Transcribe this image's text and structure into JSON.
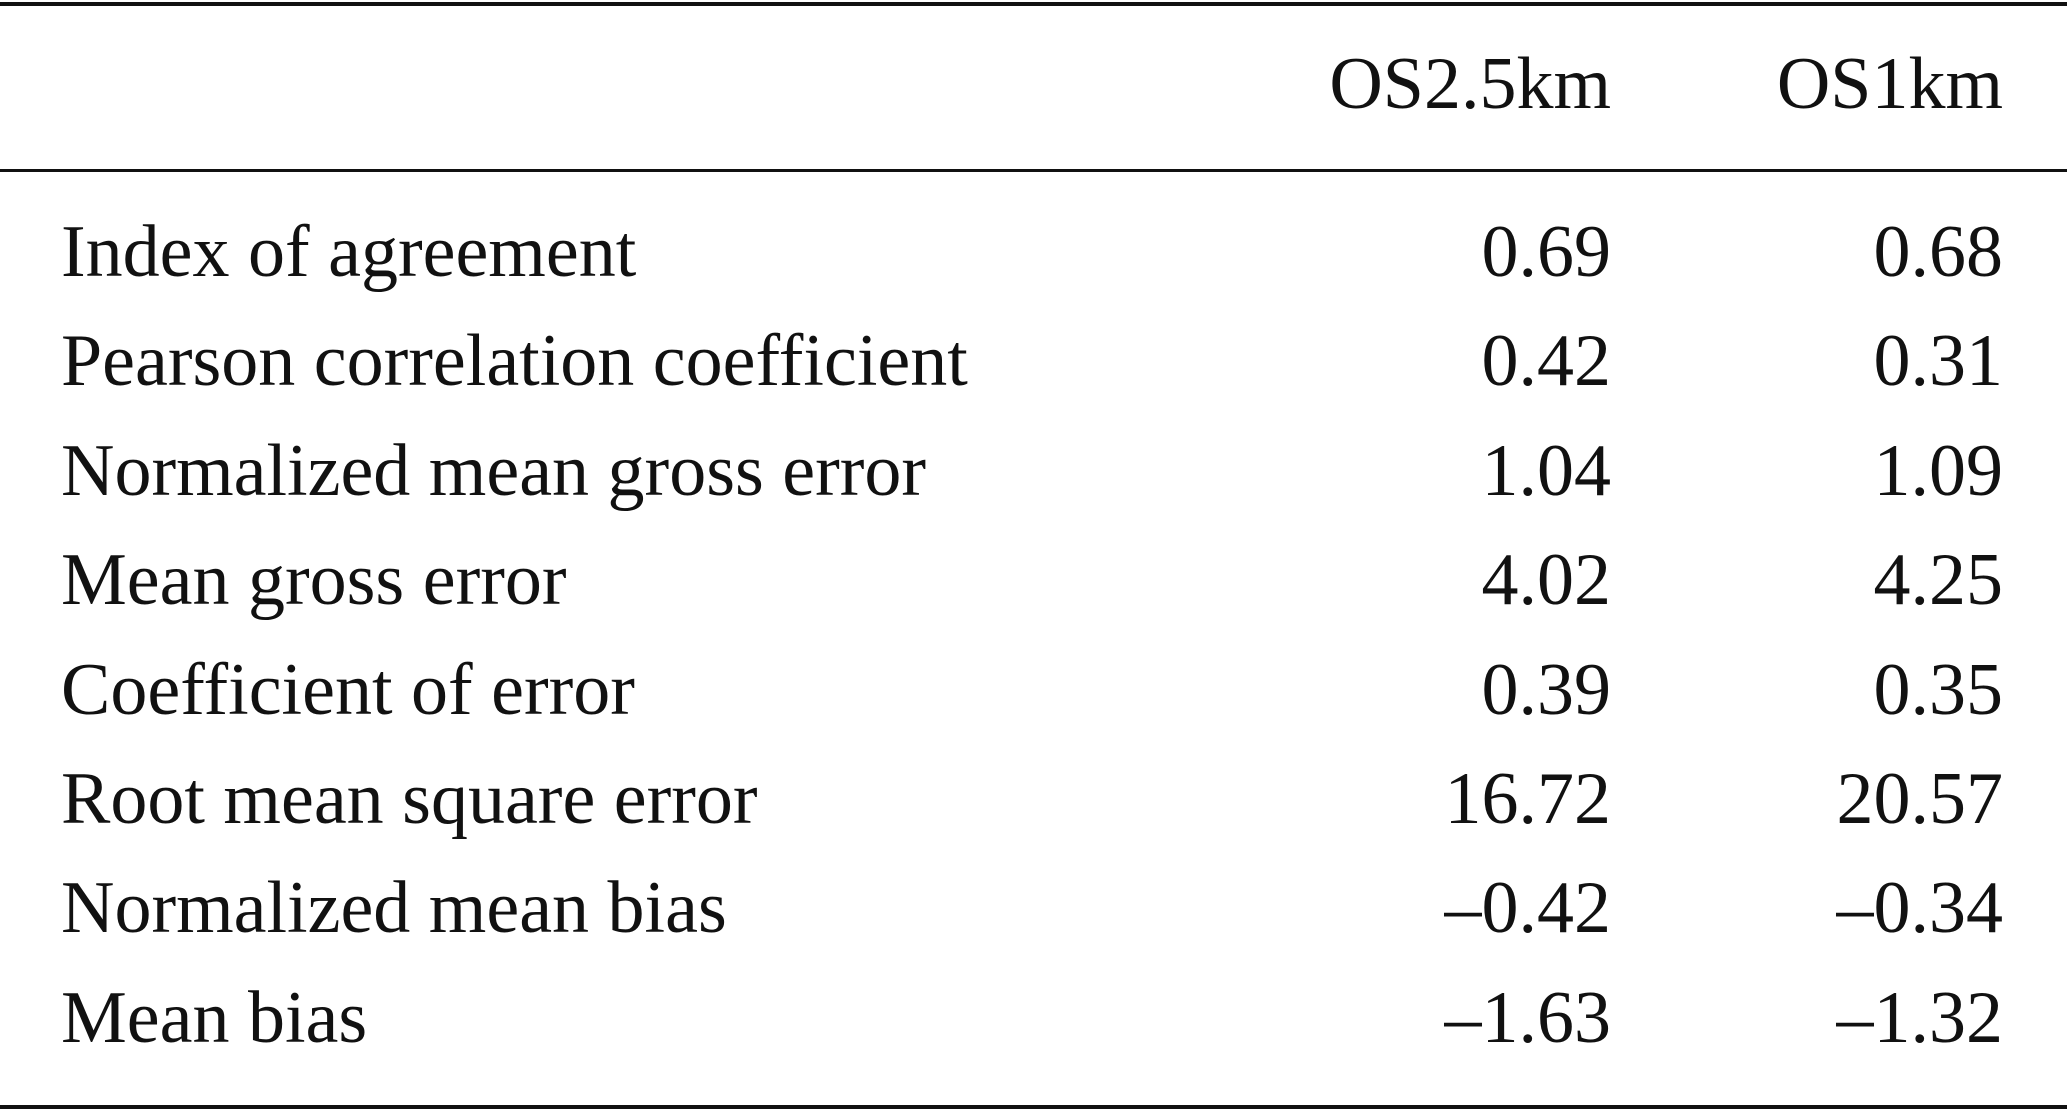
{
  "table": {
    "header": [
      "OS2.5km",
      "OS1km"
    ],
    "rows": [
      [
        "Index of agreement",
        "0.69",
        "0.68"
      ],
      [
        "Pearson correlation coefficient",
        "0.42",
        "0.31"
      ],
      [
        "Normalized mean gross error",
        "1.04",
        "1.09"
      ],
      [
        "Mean gross error",
        "4.02",
        "4.25"
      ],
      [
        "Coefficient of error",
        "0.39",
        "0.35"
      ],
      [
        "Root mean square error",
        "16.72",
        "20.57"
      ],
      [
        "Normalized mean bias",
        "–0.42",
        "–0.34"
      ],
      [
        "Mean bias",
        "–1.63",
        "–1.32"
      ]
    ]
  }
}
